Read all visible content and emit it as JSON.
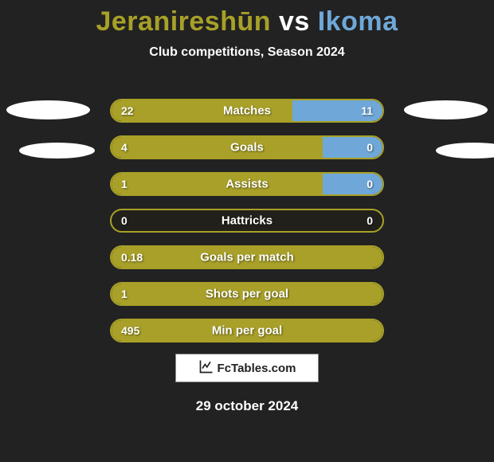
{
  "title": {
    "player1": "Jeranireshūn",
    "vs": " vs ",
    "player2": "Ikoma",
    "color1": "#a8a028",
    "color2": "#6fa8d8"
  },
  "subtitle": "Club competitions, Season 2024",
  "colors": {
    "background": "#222222",
    "bar_base": "#a8a028",
    "bar_right": "#6fa8d8",
    "border": "#a8a028",
    "text": "#ffffff"
  },
  "bars": [
    {
      "label": "Matches",
      "left_val": "22",
      "right_val": "11",
      "left_pct": 66.7,
      "right_pct": 33.3
    },
    {
      "label": "Goals",
      "left_val": "4",
      "right_val": "0",
      "left_pct": 78,
      "right_pct": 22
    },
    {
      "label": "Assists",
      "left_val": "1",
      "right_val": "0",
      "left_pct": 78,
      "right_pct": 22
    },
    {
      "label": "Hattricks",
      "left_val": "0",
      "right_val": "0",
      "left_pct": 0,
      "right_pct": 0
    },
    {
      "label": "Goals per match",
      "left_val": "0.18",
      "right_val": "",
      "left_pct": 100,
      "right_pct": 0
    },
    {
      "label": "Shots per goal",
      "left_val": "1",
      "right_val": "",
      "left_pct": 100,
      "right_pct": 0
    },
    {
      "label": "Min per goal",
      "left_val": "495",
      "right_val": "",
      "left_pct": 100,
      "right_pct": 0
    }
  ],
  "footer": {
    "site": "FcTables.com",
    "date": "29 october 2024"
  }
}
